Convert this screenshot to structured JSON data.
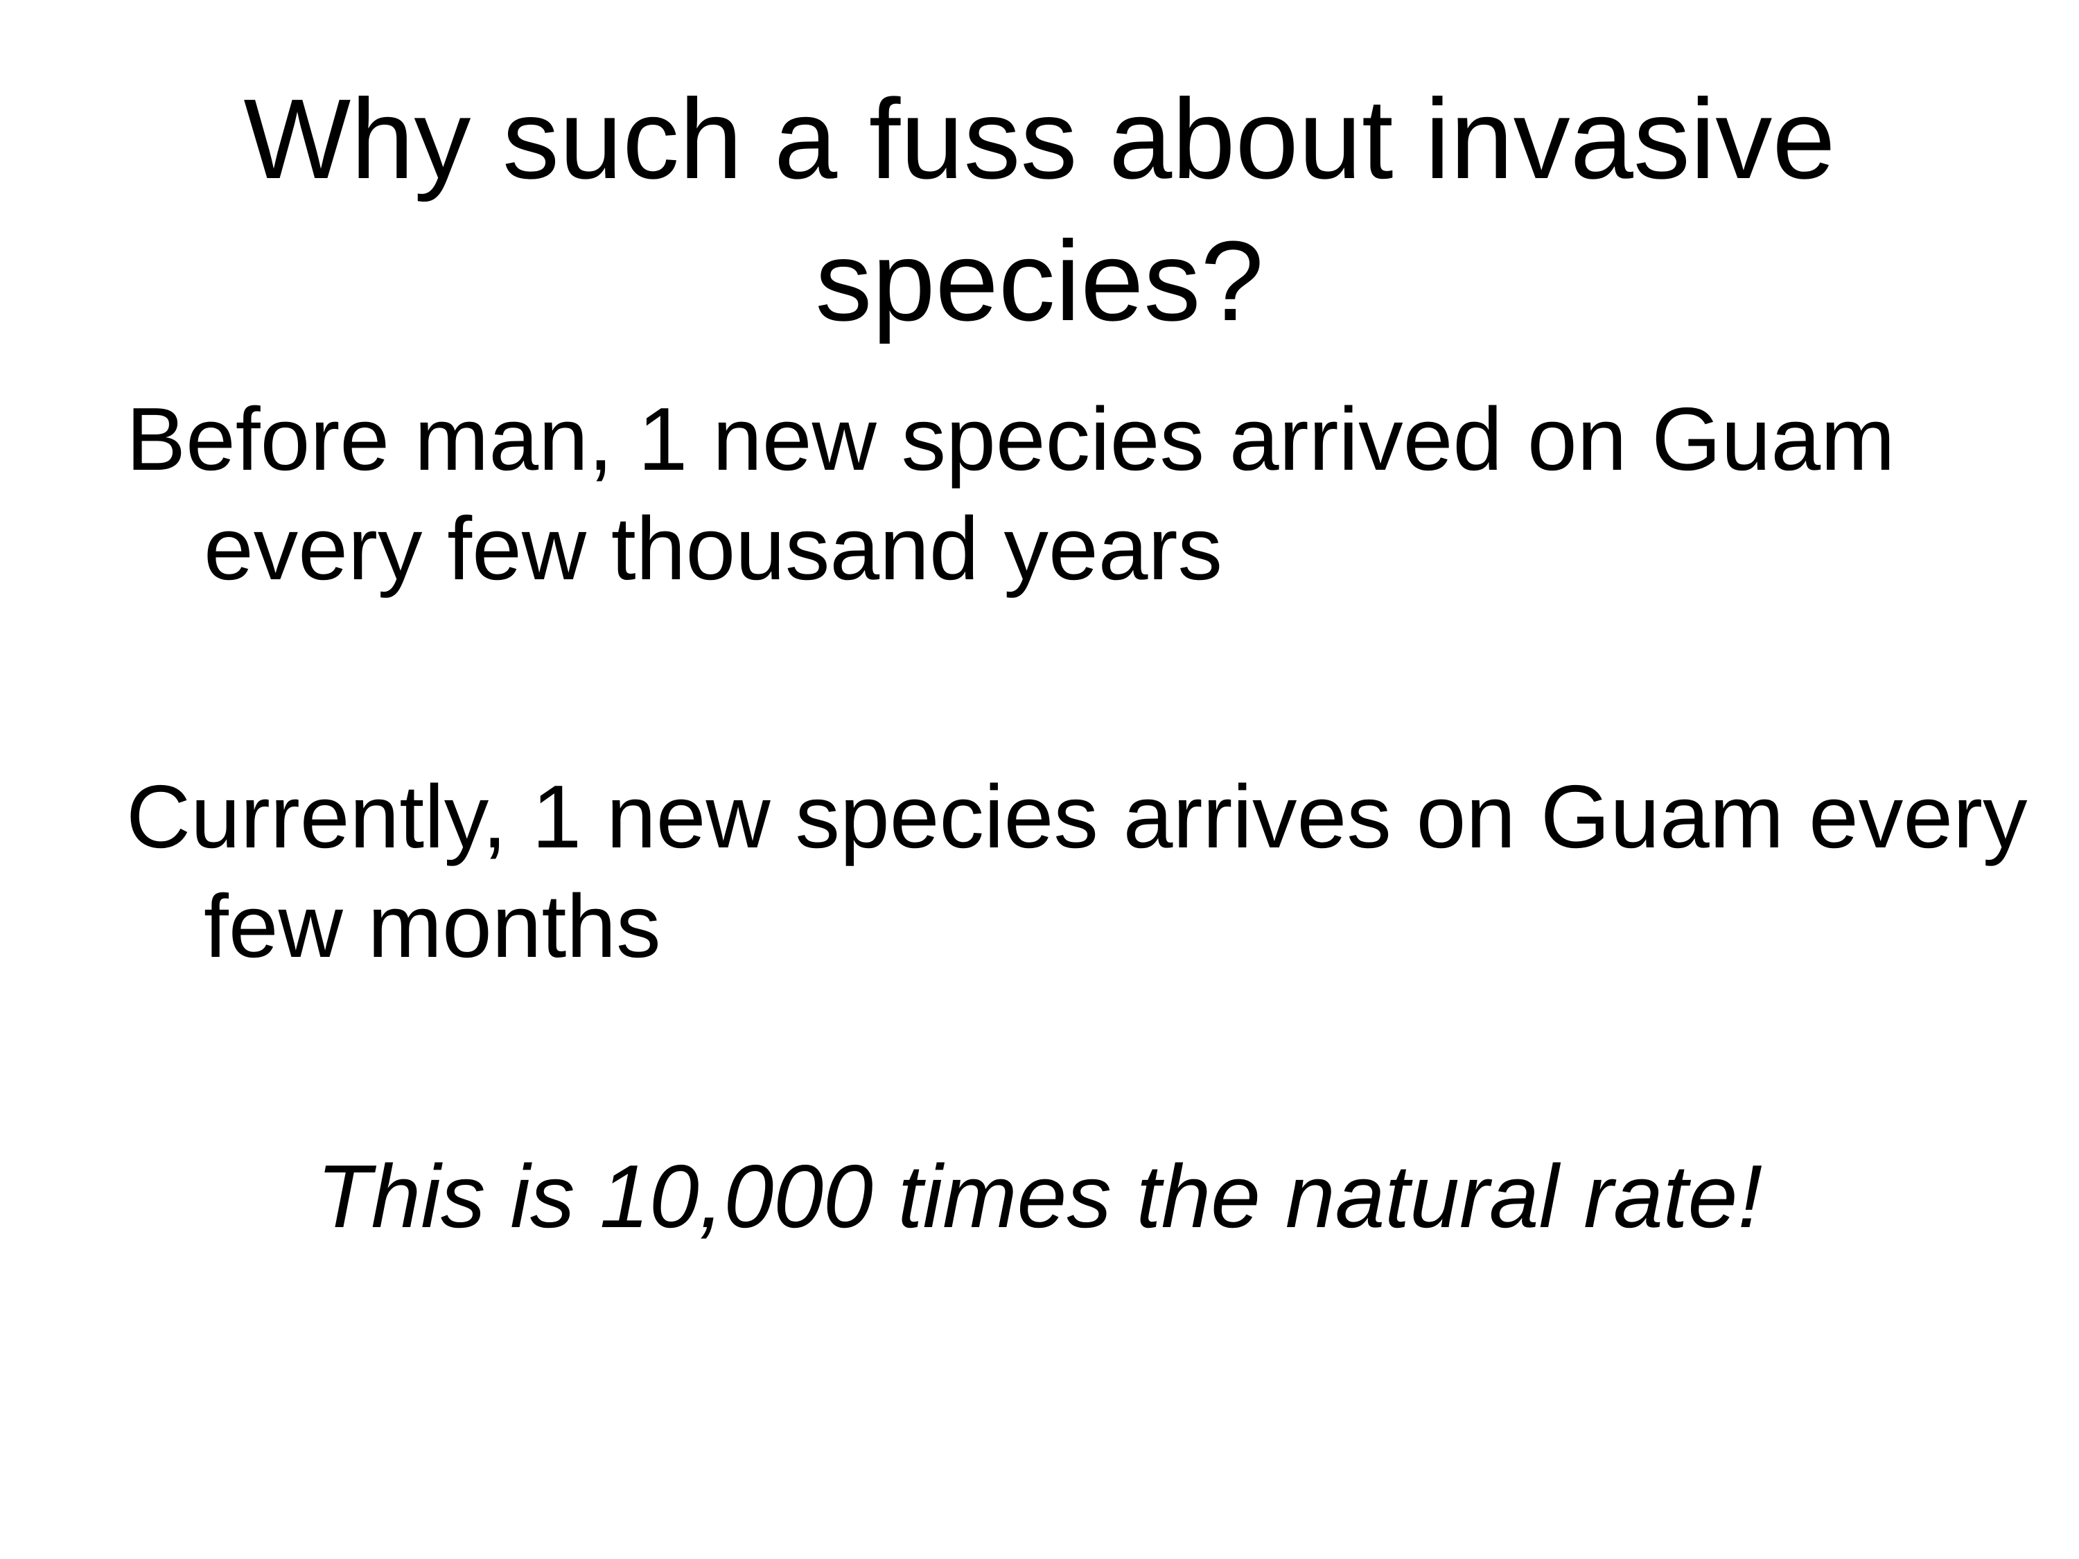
{
  "slide": {
    "title_lines": [
      "Why such a fuss about invasive",
      "species?"
    ],
    "paragraphs": [
      "Before man, 1 new species arrived on Guam every few thousand years",
      "Currently, 1 new species arrives on Guam every few months"
    ],
    "emphasis": "This is 10,000 times the natural rate!"
  }
}
